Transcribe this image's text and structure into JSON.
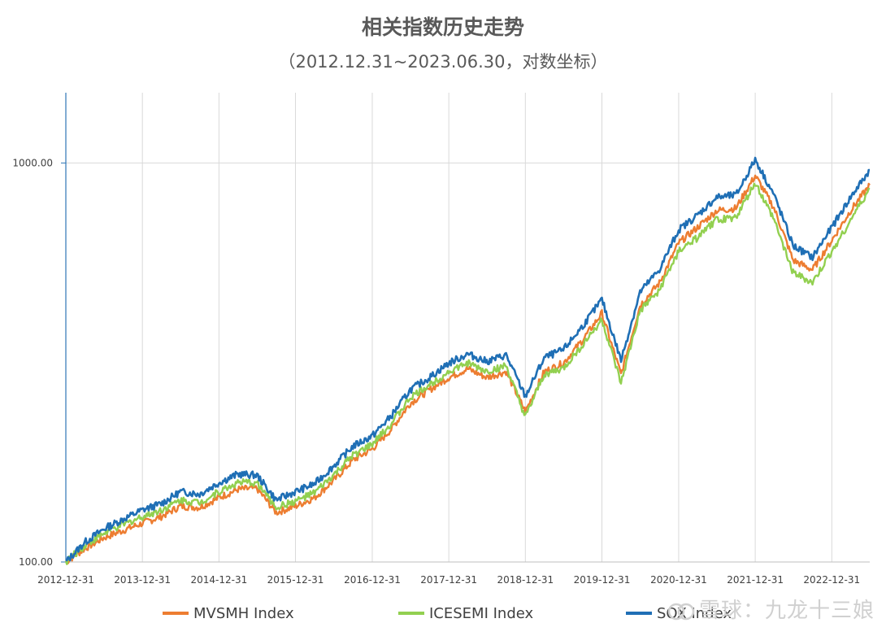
{
  "chart_data": {
    "type": "line",
    "title": "相关指数历史走势",
    "subtitle": "（2012.12.31~2023.06.30，对数坐标）",
    "y_scale": "log",
    "ylim": [
      100,
      1500
    ],
    "y_ticks": [
      100,
      1000
    ],
    "y_tick_labels": [
      "100.00",
      "1000.00"
    ],
    "x_tick_labels": [
      "2012-12-31",
      "2013-12-31",
      "2014-12-31",
      "2015-12-31",
      "2016-12-31",
      "2017-12-31",
      "2018-12-31",
      "2019-12-31",
      "2020-12-31",
      "2021-12-31",
      "2022-12-31"
    ],
    "x_range": [
      "2012-12-31",
      "2023-06-30"
    ],
    "grid": true,
    "legend_position": "bottom",
    "series": [
      {
        "name": "MVSMH Index",
        "color": "#ED7D31",
        "points": [
          [
            "2012-12-31",
            100
          ],
          [
            "2013-03-31",
            108
          ],
          [
            "2013-06-30",
            115
          ],
          [
            "2013-09-30",
            120
          ],
          [
            "2013-12-31",
            125
          ],
          [
            "2014-03-31",
            130
          ],
          [
            "2014-06-30",
            138
          ],
          [
            "2014-09-30",
            137
          ],
          [
            "2014-12-31",
            145
          ],
          [
            "2015-03-31",
            152
          ],
          [
            "2015-06-30",
            153
          ],
          [
            "2015-09-30",
            133
          ],
          [
            "2015-12-31",
            138
          ],
          [
            "2016-03-31",
            145
          ],
          [
            "2016-06-30",
            160
          ],
          [
            "2016-09-30",
            180
          ],
          [
            "2016-12-31",
            192
          ],
          [
            "2017-03-31",
            215
          ],
          [
            "2017-06-30",
            250
          ],
          [
            "2017-09-30",
            270
          ],
          [
            "2017-12-31",
            290
          ],
          [
            "2018-03-31",
            305
          ],
          [
            "2018-06-30",
            290
          ],
          [
            "2018-09-30",
            300
          ],
          [
            "2018-12-31",
            238
          ],
          [
            "2019-03-31",
            300
          ],
          [
            "2019-06-30",
            315
          ],
          [
            "2019-09-30",
            360
          ],
          [
            "2019-12-31",
            420
          ],
          [
            "2020-03-31",
            295
          ],
          [
            "2020-06-30",
            440
          ],
          [
            "2020-09-30",
            500
          ],
          [
            "2020-12-31",
            630
          ],
          [
            "2021-03-31",
            690
          ],
          [
            "2021-06-30",
            760
          ],
          [
            "2021-09-30",
            770
          ],
          [
            "2021-12-31",
            930
          ],
          [
            "2022-03-31",
            770
          ],
          [
            "2022-06-30",
            570
          ],
          [
            "2022-09-30",
            540
          ],
          [
            "2022-12-31",
            640
          ],
          [
            "2023-03-31",
            760
          ],
          [
            "2023-06-30",
            880
          ]
        ]
      },
      {
        "name": "ICESEMI Index",
        "color": "#92D050",
        "points": [
          [
            "2012-12-31",
            100
          ],
          [
            "2013-03-31",
            110
          ],
          [
            "2013-06-30",
            118
          ],
          [
            "2013-09-30",
            124
          ],
          [
            "2013-12-31",
            130
          ],
          [
            "2014-03-31",
            135
          ],
          [
            "2014-06-30",
            143
          ],
          [
            "2014-09-30",
            141
          ],
          [
            "2014-12-31",
            150
          ],
          [
            "2015-03-31",
            158
          ],
          [
            "2015-06-30",
            158
          ],
          [
            "2015-09-30",
            137
          ],
          [
            "2015-12-31",
            142
          ],
          [
            "2016-03-31",
            149
          ],
          [
            "2016-06-30",
            165
          ],
          [
            "2016-09-30",
            185
          ],
          [
            "2016-12-31",
            197
          ],
          [
            "2017-03-31",
            222
          ],
          [
            "2017-06-30",
            258
          ],
          [
            "2017-09-30",
            278
          ],
          [
            "2017-12-31",
            300
          ],
          [
            "2018-03-31",
            315
          ],
          [
            "2018-06-30",
            300
          ],
          [
            "2018-09-30",
            310
          ],
          [
            "2018-12-31",
            230
          ],
          [
            "2019-03-31",
            295
          ],
          [
            "2019-06-30",
            305
          ],
          [
            "2019-09-30",
            350
          ],
          [
            "2019-12-31",
            405
          ],
          [
            "2020-03-31",
            280
          ],
          [
            "2020-06-30",
            425
          ],
          [
            "2020-09-30",
            480
          ],
          [
            "2020-12-31",
            600
          ],
          [
            "2021-03-31",
            650
          ],
          [
            "2021-06-30",
            720
          ],
          [
            "2021-09-30",
            730
          ],
          [
            "2021-12-31",
            890
          ],
          [
            "2022-03-31",
            720
          ],
          [
            "2022-06-30",
            530
          ],
          [
            "2022-09-30",
            500
          ],
          [
            "2022-12-31",
            600
          ],
          [
            "2023-03-31",
            720
          ],
          [
            "2023-06-30",
            860
          ]
        ]
      },
      {
        "name": "SOX Index",
        "color": "#1F6FB5",
        "points": [
          [
            "2012-12-31",
            100
          ],
          [
            "2013-03-31",
            112
          ],
          [
            "2013-06-30",
            121
          ],
          [
            "2013-09-30",
            128
          ],
          [
            "2013-12-31",
            135
          ],
          [
            "2014-03-31",
            140
          ],
          [
            "2014-06-30",
            150
          ],
          [
            "2014-09-30",
            148
          ],
          [
            "2014-12-31",
            158
          ],
          [
            "2015-03-31",
            166
          ],
          [
            "2015-06-30",
            165
          ],
          [
            "2015-09-30",
            143
          ],
          [
            "2015-12-31",
            150
          ],
          [
            "2016-03-31",
            157
          ],
          [
            "2016-06-30",
            174
          ],
          [
            "2016-09-30",
            195
          ],
          [
            "2016-12-31",
            207
          ],
          [
            "2017-03-31",
            232
          ],
          [
            "2017-06-30",
            270
          ],
          [
            "2017-09-30",
            290
          ],
          [
            "2017-12-31",
            315
          ],
          [
            "2018-03-31",
            332
          ],
          [
            "2018-06-30",
            318
          ],
          [
            "2018-09-30",
            330
          ],
          [
            "2018-12-31",
            260
          ],
          [
            "2019-03-31",
            325
          ],
          [
            "2019-06-30",
            340
          ],
          [
            "2019-09-30",
            390
          ],
          [
            "2019-12-31",
            455
          ],
          [
            "2020-03-31",
            320
          ],
          [
            "2020-06-30",
            475
          ],
          [
            "2020-09-30",
            540
          ],
          [
            "2020-12-31",
            680
          ],
          [
            "2021-03-31",
            740
          ],
          [
            "2021-06-30",
            820
          ],
          [
            "2021-09-30",
            830
          ],
          [
            "2021-12-31",
            1020
          ],
          [
            "2022-03-31",
            830
          ],
          [
            "2022-06-30",
            620
          ],
          [
            "2022-09-30",
            580
          ],
          [
            "2022-12-31",
            690
          ],
          [
            "2023-03-31",
            820
          ],
          [
            "2023-06-30",
            960
          ]
        ]
      }
    ]
  },
  "watermark": {
    "text": "雪球：九龙十三娘"
  }
}
